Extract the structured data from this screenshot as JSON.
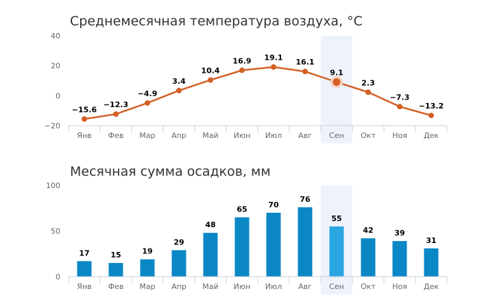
{
  "chart_data": [
    {
      "type": "line",
      "title": "Среднемесячная температура воздуха, °C",
      "categories": [
        "Янв",
        "Фев",
        "Мар",
        "Апр",
        "Май",
        "Июн",
        "Июл",
        "Авг",
        "Сен",
        "Окт",
        "Ноя",
        "Дек"
      ],
      "series": [
        {
          "values": [
            -15.6,
            -12.3,
            -4.9,
            3.4,
            10.4,
            16.9,
            19.1,
            16.1,
            9.1,
            2.3,
            -7.3,
            -13.2
          ]
        }
      ],
      "data_labels": [
        "−15.6",
        "−12.3",
        "−4.9",
        "3.4",
        "10.4",
        "16.9",
        "19.1",
        "16.1",
        "9.1",
        "2.3",
        "−7.3",
        "−13.2"
      ],
      "y_ticks": [
        40,
        20,
        0,
        -20
      ],
      "y_tick_labels": [
        "40",
        "20",
        "0",
        "−20"
      ],
      "ylim": [
        -20,
        40
      ],
      "highlighted_category": "Сен",
      "grid": false,
      "colors": {
        "line": "#d35f24",
        "highlight_band": "#eef3fb",
        "highlight_marker_halo": "#f7d4c3"
      }
    },
    {
      "type": "bar",
      "title": "Месячная сумма осадков, мм",
      "categories": [
        "Янв",
        "Фев",
        "Мар",
        "Апр",
        "Май",
        "Июн",
        "Июл",
        "Авг",
        "Сен",
        "Окт",
        "Ноя",
        "Дек"
      ],
      "series": [
        {
          "values": [
            17,
            15,
            19,
            29,
            48,
            65,
            70,
            76,
            55,
            42,
            39,
            31
          ]
        }
      ],
      "data_labels": [
        "17",
        "15",
        "19",
        "29",
        "48",
        "65",
        "70",
        "76",
        "55",
        "42",
        "39",
        "31"
      ],
      "y_ticks": [
        100,
        50,
        0
      ],
      "y_tick_labels": [
        "100",
        "50",
        "0"
      ],
      "ylim": [
        0,
        100
      ],
      "highlighted_category": "Сен",
      "grid": false,
      "colors": {
        "bar": "#0b87c6",
        "bar_highlight": "#2aa6e0",
        "highlight_band": "#eef3fb"
      }
    }
  ]
}
